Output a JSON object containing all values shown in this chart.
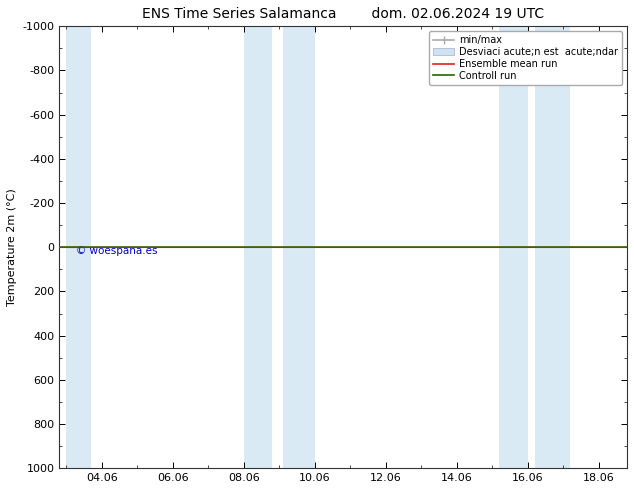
{
  "title": "ENS Time Series Salamanca",
  "title2": "dom. 02.06.2024 19 UTC",
  "ylabel": "Temperature 2m (°C)",
  "watermark": "© woespana.es",
  "xlim": [
    2.8,
    18.8
  ],
  "ylim_top": -1000,
  "ylim_bottom": 1000,
  "yticks": [
    -1000,
    -800,
    -600,
    -400,
    -200,
    0,
    200,
    400,
    600,
    800,
    1000
  ],
  "xticks": [
    4,
    6,
    8,
    10,
    12,
    14,
    16,
    18
  ],
  "xtick_labels": [
    "04.06",
    "06.06",
    "08.06",
    "10.06",
    "12.06",
    "14.06",
    "16.06",
    "18.06"
  ],
  "blue_bands": [
    [
      3.0,
      3.7
    ],
    [
      8.0,
      8.8
    ],
    [
      9.1,
      10.0
    ],
    [
      15.2,
      16.0
    ],
    [
      16.2,
      17.2
    ]
  ],
  "green_line_y": 0,
  "red_line_y": 0,
  "legend_labels": [
    "min/max",
    "Desviaci acute;n est  acute;ndar",
    "Ensemble mean run",
    "Controll run"
  ],
  "legend_line_color": "#aaaaaa",
  "legend_band_color": "#cce4f0",
  "legend_red_color": "#dd2222",
  "legend_green_color": "#226600",
  "control_line_color": "#336600",
  "ensemble_line_color": "#dd2222",
  "background_color": "#ffffff",
  "band_color": "#daeaf5",
  "font_size": 8,
  "title_font_size": 10
}
